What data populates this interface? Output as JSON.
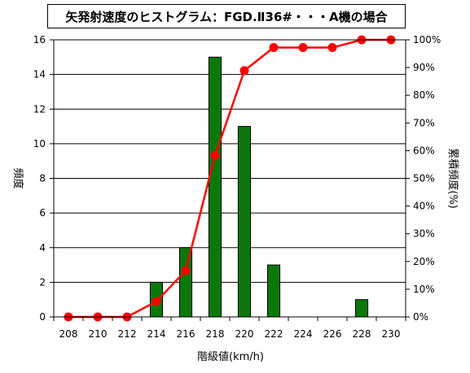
{
  "chart_data": {
    "type": "bar",
    "title": "矢発射速度のヒストグラム：FGD.Ⅱ36#・・・A機の場合",
    "xlabel": "階級値(km/h)",
    "ylabel": "頻度",
    "y2label": "累積頻度(%)",
    "categories": [
      "208",
      "210",
      "212",
      "214",
      "216",
      "218",
      "220",
      "222",
      "224",
      "226",
      "228",
      "230"
    ],
    "series": [
      {
        "kind": "bar",
        "axis": "left",
        "color": "#0a780a",
        "values": [
          0,
          0,
          0,
          2,
          4,
          15,
          11,
          3,
          0,
          0,
          1,
          0
        ]
      },
      {
        "kind": "line",
        "axis": "right",
        "color": "#ff0000",
        "values": [
          0,
          0,
          0,
          5.6,
          16.7,
          58.3,
          88.9,
          97.2,
          97.2,
          97.2,
          100,
          100
        ]
      }
    ],
    "ylim": [
      0,
      16
    ],
    "yticks": [
      "0",
      "2",
      "4",
      "6",
      "8",
      "10",
      "12",
      "14",
      "16"
    ],
    "y2lim": [
      0,
      100
    ],
    "y2ticks": [
      "0%",
      "10%",
      "20%",
      "30%",
      "40%",
      "50%",
      "60%",
      "70%",
      "80%",
      "90%",
      "100%"
    ],
    "grid": "horizontal"
  }
}
